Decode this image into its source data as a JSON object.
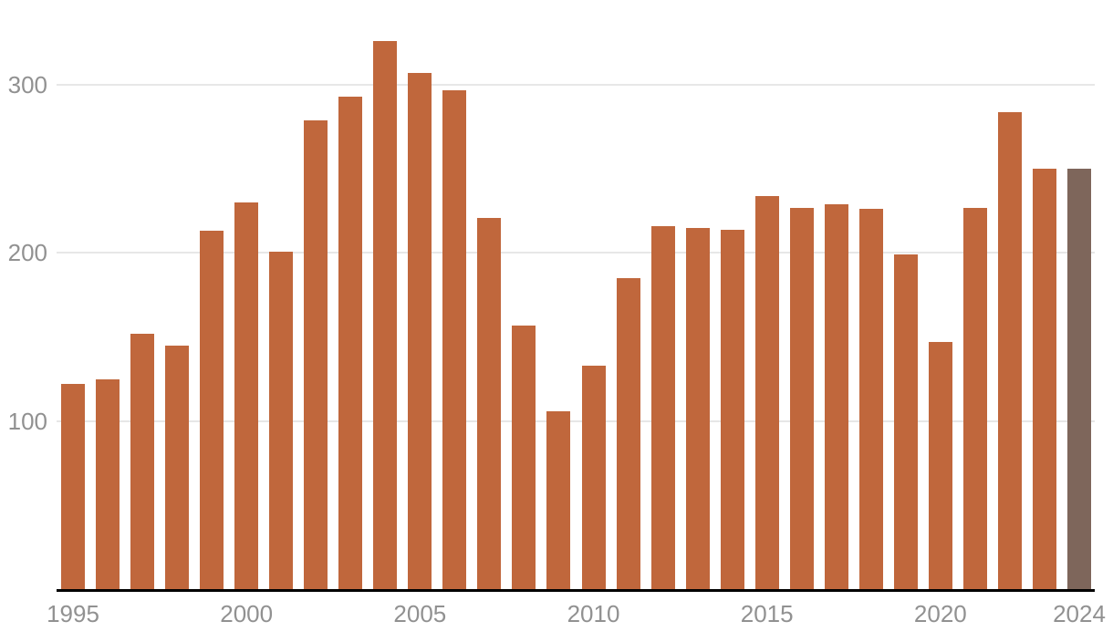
{
  "chart_data": {
    "type": "bar",
    "title": "",
    "xlabel": "",
    "ylabel": "",
    "categories": [
      "1995",
      "1996",
      "1997",
      "1998",
      "1999",
      "2000",
      "2001",
      "2002",
      "2003",
      "2004",
      "2005",
      "2006",
      "2007",
      "2008",
      "2009",
      "2010",
      "2011",
      "2012",
      "2013",
      "2014",
      "2015",
      "2016",
      "2017",
      "2018",
      "2019",
      "2020",
      "2021",
      "2022",
      "2023",
      "2024"
    ],
    "values": [
      122,
      125,
      152,
      145,
      213,
      230,
      201,
      279,
      293,
      326,
      307,
      297,
      221,
      157,
      106,
      133,
      185,
      216,
      215,
      214,
      234,
      227,
      229,
      226,
      199,
      147,
      227,
      284,
      250,
      250
    ],
    "highlighted_category": "2024",
    "ylim": [
      0,
      350
    ],
    "yticks": [
      100,
      200,
      300
    ],
    "xtick_labels": [
      "1995",
      "2000",
      "2005",
      "2010",
      "2015",
      "2020",
      "2024"
    ],
    "grid": true,
    "legend": false,
    "colors": {
      "bar": "#C0673C",
      "highlight_bar": "#7E665B",
      "gridline": "#E7E7E7",
      "axis_line": "#000000",
      "tick_label": "#919191",
      "background": "#FFFFFF"
    }
  }
}
